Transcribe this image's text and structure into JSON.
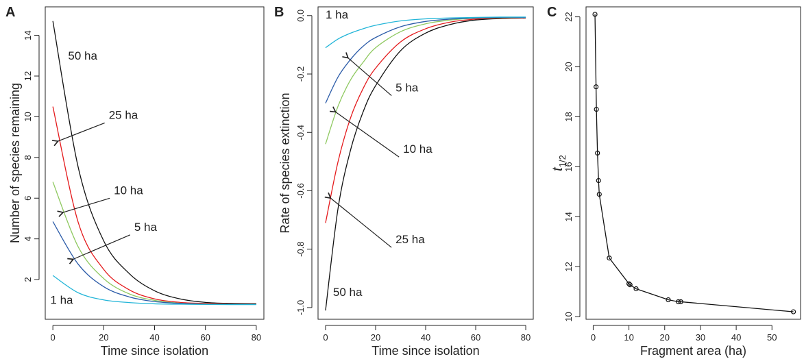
{
  "chart_data": [
    {
      "panel": "A",
      "type": "line",
      "xlabel": "Time since isolation",
      "ylabel": "Number of species remaining",
      "xlim": [
        -3,
        83
      ],
      "ylim": [
        0.05,
        15.4
      ],
      "xticks": [
        0,
        20,
        40,
        60,
        80
      ],
      "yticks": [
        2,
        4,
        6,
        8,
        10,
        12,
        14
      ],
      "series": [
        {
          "name": "50 ha",
          "color": "#111111",
          "x": [
            0,
            10,
            20,
            30,
            40,
            50,
            60,
            70,
            80
          ],
          "y": [
            14.7,
            7.5,
            3.9,
            2.3,
            1.45,
            1.05,
            0.88,
            0.83,
            0.82
          ]
        },
        {
          "name": "25 ha",
          "color": "#e41a1c",
          "x": [
            0,
            10,
            20,
            30,
            40,
            50,
            60,
            70,
            80
          ],
          "y": [
            10.5,
            4.8,
            2.5,
            1.5,
            1.05,
            0.88,
            0.83,
            0.8,
            0.8
          ]
        },
        {
          "name": "10 ha",
          "color": "#8fc961",
          "x": [
            0,
            10,
            20,
            30,
            40,
            50,
            60,
            70,
            80
          ],
          "y": [
            6.8,
            3.6,
            2.05,
            1.3,
            0.98,
            0.84,
            0.8,
            0.79,
            0.79
          ]
        },
        {
          "name": "5 ha",
          "color": "#2b5ba8",
          "x": [
            0,
            10,
            20,
            30,
            40,
            50,
            60,
            70,
            80
          ],
          "y": [
            4.85,
            2.75,
            1.65,
            1.15,
            0.92,
            0.83,
            0.79,
            0.78,
            0.78
          ]
        },
        {
          "name": "1 ha",
          "color": "#22b5d8",
          "x": [
            0,
            10,
            20,
            30,
            40,
            50,
            60,
            70,
            80
          ],
          "y": [
            2.2,
            1.35,
            1.0,
            0.87,
            0.81,
            0.79,
            0.78,
            0.77,
            0.77
          ]
        }
      ],
      "annotations": [
        {
          "text": "50 ha",
          "x": 6,
          "y": 12.8
        },
        {
          "text": "25 ha",
          "x": 22,
          "y": 9.9,
          "arrow_to": [
            2,
            8.8
          ]
        },
        {
          "text": "10 ha",
          "x": 24,
          "y": 6.2,
          "arrow_to": [
            4,
            5.3
          ]
        },
        {
          "text": "5 ha",
          "x": 32,
          "y": 4.4,
          "arrow_to": [
            8,
            3.0
          ]
        },
        {
          "text": "1 ha",
          "x": -1,
          "y": 0.8
        }
      ]
    },
    {
      "panel": "B",
      "type": "line",
      "xlabel": "Time since isolation",
      "ylabel": "Rate of species extinction",
      "xlim": [
        -3,
        83
      ],
      "ylim": [
        -1.04,
        0.03
      ],
      "xticks": [
        0,
        20,
        40,
        60,
        80
      ],
      "yticks": [
        -1.0,
        -0.8,
        -0.6,
        -0.4,
        -0.2,
        0.0
      ],
      "ytick_labels": [
        "-1.0",
        "-0.8",
        "-0.6",
        "-0.4",
        "-0.2",
        "0.0"
      ],
      "series": [
        {
          "name": "50 ha",
          "color": "#111111",
          "x": [
            0,
            5,
            10,
            15,
            20,
            30,
            40,
            50,
            60,
            70,
            80
          ],
          "y": [
            -1.01,
            -0.66,
            -0.46,
            -0.33,
            -0.24,
            -0.12,
            -0.06,
            -0.03,
            -0.015,
            -0.01,
            -0.008
          ]
        },
        {
          "name": "25 ha",
          "color": "#e41a1c",
          "x": [
            0,
            5,
            10,
            15,
            20,
            30,
            40,
            50,
            60,
            70,
            80
          ],
          "y": [
            -0.71,
            -0.5,
            -0.35,
            -0.25,
            -0.18,
            -0.09,
            -0.045,
            -0.022,
            -0.012,
            -0.008,
            -0.007
          ]
        },
        {
          "name": "10 ha",
          "color": "#8fc961",
          "x": [
            0,
            5,
            10,
            15,
            20,
            30,
            40,
            50,
            60,
            70,
            80
          ],
          "y": [
            -0.44,
            -0.31,
            -0.22,
            -0.16,
            -0.11,
            -0.055,
            -0.028,
            -0.015,
            -0.009,
            -0.007,
            -0.006
          ]
        },
        {
          "name": "5 ha",
          "color": "#2b5ba8",
          "x": [
            0,
            5,
            10,
            15,
            20,
            30,
            40,
            50,
            60,
            70,
            80
          ],
          "y": [
            -0.3,
            -0.21,
            -0.15,
            -0.105,
            -0.075,
            -0.038,
            -0.02,
            -0.012,
            -0.008,
            -0.006,
            -0.006
          ]
        },
        {
          "name": "1 ha",
          "color": "#22b5d8",
          "x": [
            0,
            5,
            10,
            15,
            20,
            30,
            40,
            50,
            60,
            70,
            80
          ],
          "y": [
            -0.11,
            -0.08,
            -0.06,
            -0.045,
            -0.033,
            -0.018,
            -0.011,
            -0.008,
            -0.006,
            -0.005,
            -0.005
          ]
        }
      ],
      "annotations": [
        {
          "text": "1 ha",
          "x": 0,
          "y": -0.01
        },
        {
          "text": "5 ha",
          "x": 28,
          "y": -0.26,
          "arrow_to": [
            9,
            -0.145
          ]
        },
        {
          "text": "10 ha",
          "x": 31,
          "y": -0.47,
          "arrow_to": [
            4,
            -0.33
          ]
        },
        {
          "text": "25 ha",
          "x": 28,
          "y": -0.78,
          "arrow_to": [
            2,
            -0.625
          ]
        },
        {
          "text": "50 ha",
          "x": 3,
          "y": -0.96
        }
      ]
    },
    {
      "panel": "C",
      "type": "scatter",
      "xlabel": "Fragment area (ha)",
      "ylabel": "t",
      "ylabel_subscript": "1/2",
      "xlim": [
        -2,
        58
      ],
      "ylim": [
        9.9,
        22.4
      ],
      "xticks": [
        0,
        10,
        20,
        30,
        40,
        50
      ],
      "yticks": [
        10,
        12,
        14,
        16,
        18,
        20,
        22
      ],
      "points": {
        "x": [
          0.5,
          0.8,
          0.9,
          1.2,
          1.5,
          1.7,
          4.5,
          10,
          10.3,
          12,
          21,
          23.8,
          24.5,
          56
        ],
        "y": [
          22.1,
          19.2,
          18.3,
          16.55,
          15.45,
          14.9,
          12.35,
          11.32,
          11.28,
          11.12,
          10.68,
          10.6,
          10.6,
          10.2
        ]
      }
    }
  ]
}
